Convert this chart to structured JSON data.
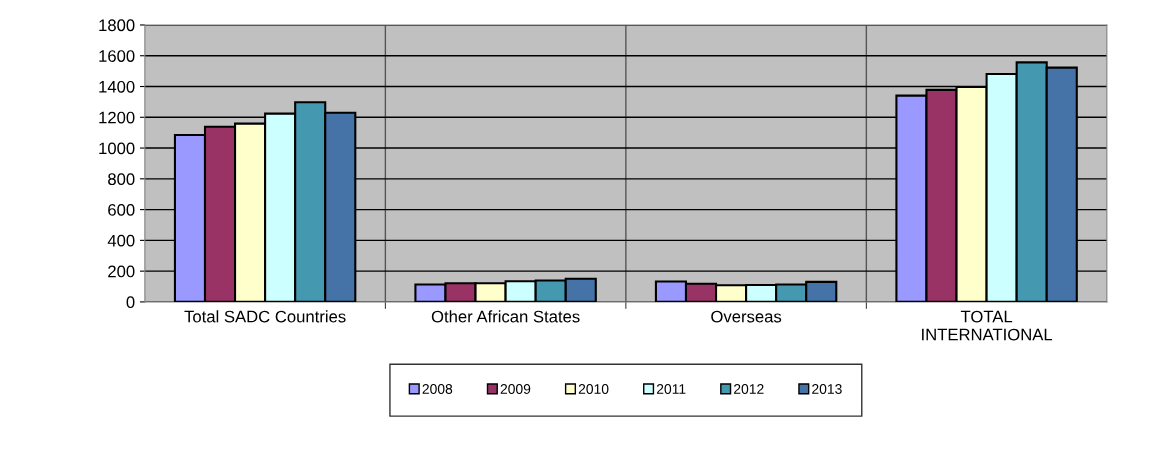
{
  "chart_data": {
    "type": "bar",
    "categories": [
      "Total SADC Countries",
      "Other African States",
      "Overseas",
      "TOTAL\nINTERNATIONAL"
    ],
    "series": [
      {
        "name": "2008",
        "color": "#9999ff",
        "values": [
          1085,
          113,
          133,
          1341
        ]
      },
      {
        "name": "2009",
        "color": "#993366",
        "values": [
          1138,
          121,
          118,
          1378
        ]
      },
      {
        "name": "2010",
        "color": "#ffffcc",
        "values": [
          1159,
          121,
          108,
          1397
        ]
      },
      {
        "name": "2011",
        "color": "#ccffff",
        "values": [
          1224,
          134,
          110,
          1481
        ]
      },
      {
        "name": "2012",
        "color": "#4499b0",
        "values": [
          1298,
          139,
          113,
          1557
        ]
      },
      {
        "name": "2013",
        "color": "#4573a7",
        "values": [
          1230,
          150,
          130,
          1523
        ]
      }
    ],
    "ylim": [
      0,
      1800
    ],
    "yticks": [
      0,
      200,
      400,
      600,
      800,
      1000,
      1200,
      1400,
      1600,
      1800
    ],
    "grid": true,
    "legend": "bottom"
  }
}
